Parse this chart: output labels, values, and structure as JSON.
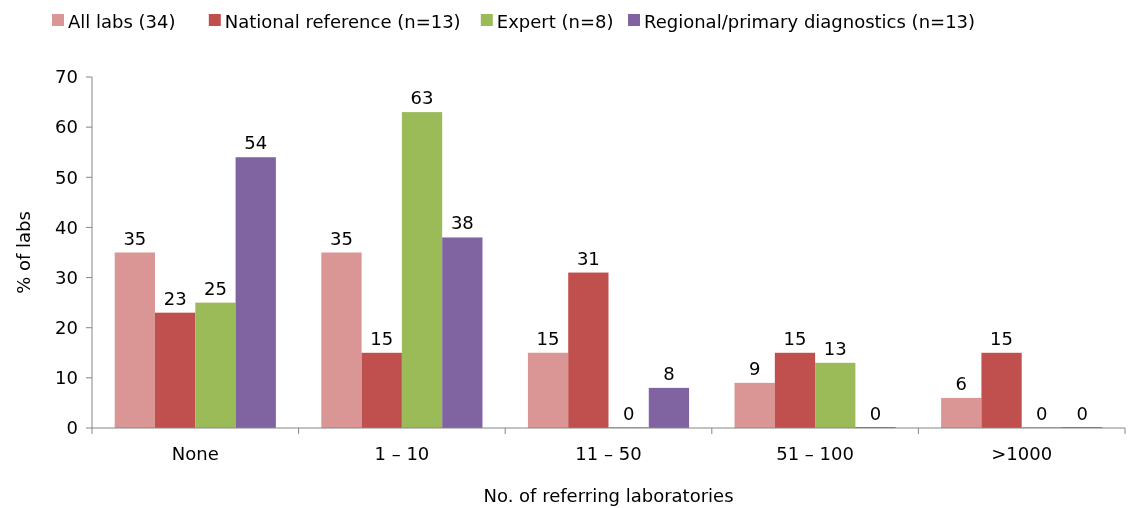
{
  "chart_data": {
    "type": "bar",
    "xlabel": "No. of referring laboratories",
    "ylabel": "% of labs",
    "categories": [
      "None",
      "1 – 10",
      "11 – 50",
      "51 – 100",
      ">1000"
    ],
    "series": [
      {
        "name": "All labs (34)",
        "color": "#d99694",
        "values": [
          35,
          35,
          15,
          9,
          6
        ]
      },
      {
        "name": "National reference (n=13)",
        "color": "#c0504d",
        "values": [
          23,
          15,
          31,
          15,
          15
        ]
      },
      {
        "name": "Expert (n=8)",
        "color": "#9bbb59",
        "values": [
          25,
          63,
          0,
          13,
          0
        ]
      },
      {
        "name": "Regional/primary diagnostics (n=13)",
        "color": "#8064a2",
        "values": [
          54,
          38,
          8,
          0,
          0
        ]
      }
    ],
    "ylim": [
      0,
      70
    ],
    "yticks": [
      0,
      10,
      20,
      30,
      40,
      50,
      60,
      70
    ],
    "data_labels": true,
    "legend": "top",
    "grid": false
  }
}
